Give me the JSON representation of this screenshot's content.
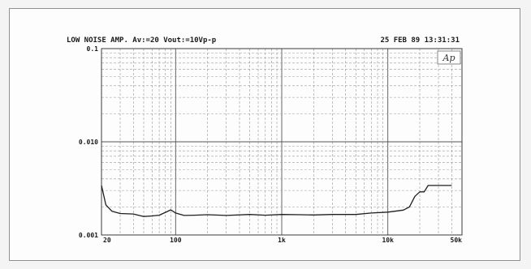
{
  "header": {
    "left": "LOW NOISE AMP. Av:=20  Vout:=10Vp-p",
    "right": "25 FEB 89 13:31:31"
  },
  "logo": "Ap",
  "chart_data": {
    "type": "line",
    "title": "",
    "xlabel": "",
    "ylabel": "",
    "x_scale": "log",
    "y_scale": "log",
    "xlim": [
      20,
      50000
    ],
    "ylim": [
      0.001,
      0.1
    ],
    "grid": true,
    "x_ticks": [
      {
        "value": 20,
        "label": "20"
      },
      {
        "value": 100,
        "label": "100"
      },
      {
        "value": 1000,
        "label": "1k"
      },
      {
        "value": 10000,
        "label": "10k"
      },
      {
        "value": 50000,
        "label": "50k"
      }
    ],
    "y_ticks": [
      {
        "value": 0.1,
        "label": "0.1"
      },
      {
        "value": 0.01,
        "label": "0.010"
      },
      {
        "value": 0.001,
        "label": "0.001"
      }
    ],
    "series": [
      {
        "x": [
          20,
          22,
          25,
          30,
          40,
          50,
          60,
          70,
          80,
          90,
          100,
          120,
          150,
          200,
          300,
          500,
          700,
          1000,
          1500,
          2000,
          3000,
          5000,
          7000,
          10000,
          14000,
          16000,
          18000,
          20000,
          22000,
          24000,
          26000,
          28000,
          30000,
          35000,
          40000
        ],
        "y": [
          0.0034,
          0.0021,
          0.0018,
          0.0017,
          0.00168,
          0.00158,
          0.0016,
          0.00163,
          0.00175,
          0.00186,
          0.00172,
          0.00162,
          0.00163,
          0.00165,
          0.00162,
          0.00166,
          0.00163,
          0.00166,
          0.00165,
          0.00164,
          0.00166,
          0.00166,
          0.00172,
          0.00176,
          0.00185,
          0.002,
          0.0026,
          0.0029,
          0.0029,
          0.0034,
          0.0034,
          0.0034,
          0.0034,
          0.0034,
          0.0034
        ]
      }
    ]
  }
}
